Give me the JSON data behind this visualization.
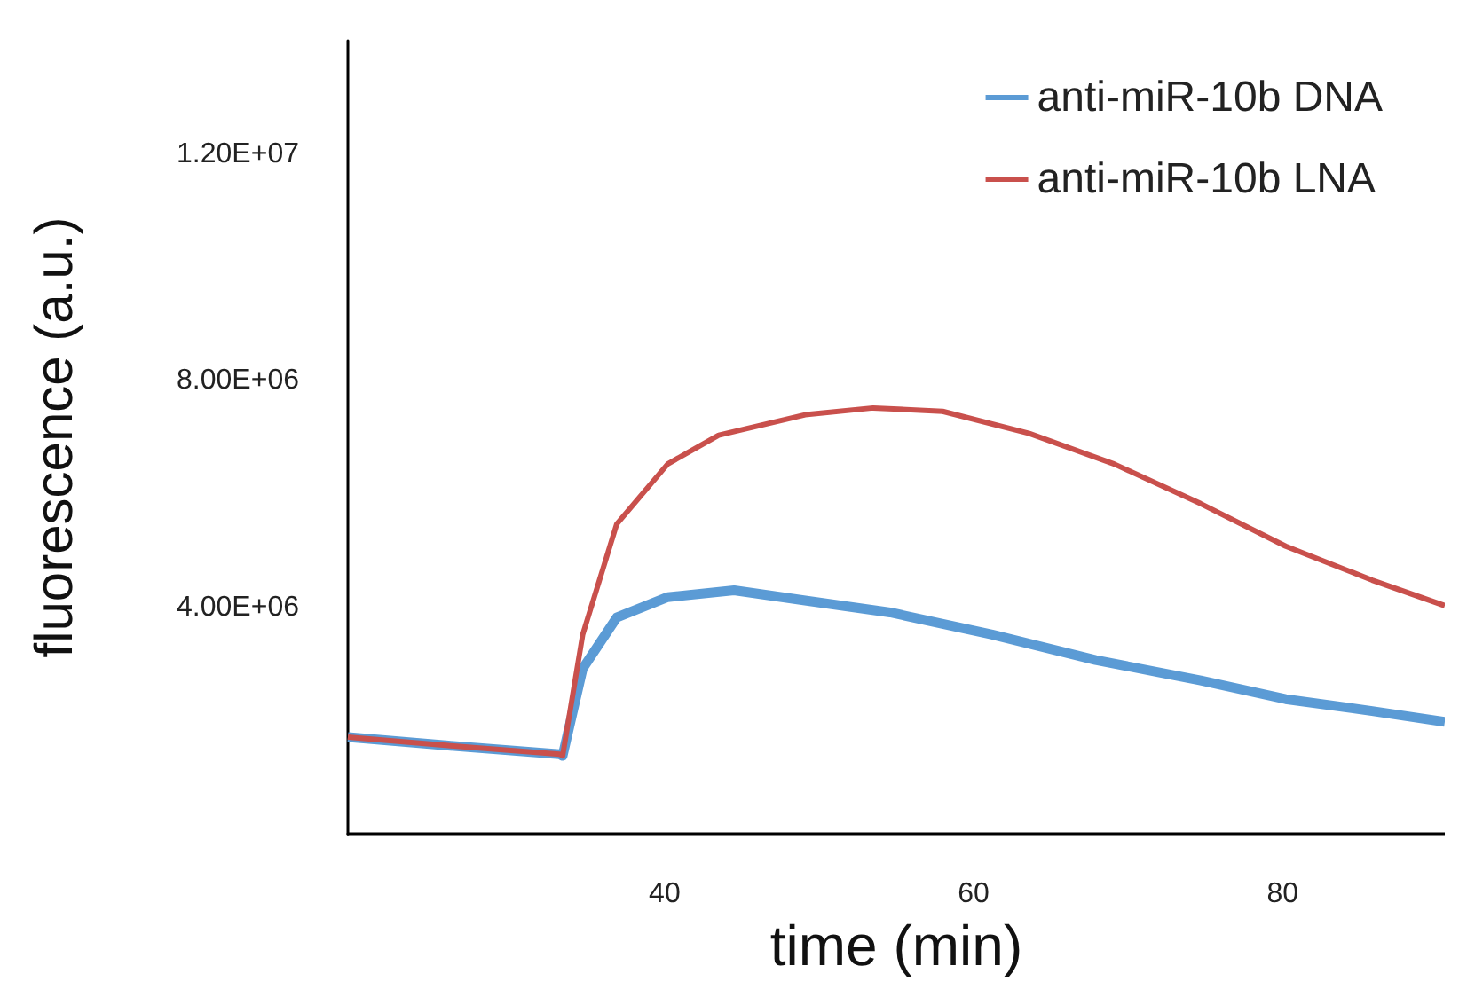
{
  "chart_data": {
    "type": "line",
    "xlabel": "time (min)",
    "ylabel": "fluorescence (a.u.)",
    "xlim": [
      19.5,
      90.5
    ],
    "xticks": [
      40,
      60,
      80
    ],
    "ylim": [
      0,
      14000000
    ],
    "yticks": [
      {
        "value": 4000000,
        "label": "4.00E+06"
      },
      {
        "value": 8000000,
        "label": "8.00E+06"
      },
      {
        "value": 12000000,
        "label": "1.20E+07"
      }
    ],
    "grid": false,
    "legend": "top right",
    "marker": "none",
    "line_style": "solid",
    "series": [
      {
        "name": "anti-miR-10b DNA",
        "color": "#5b9bd5",
        "x": [
          19.5,
          26,
          33.2,
          33.4,
          34.7,
          36.9,
          40.2,
          44.5,
          49.1,
          54.6,
          61.2,
          67.9,
          74.7,
          80.2,
          85.8,
          90.5
        ],
        "values": [
          1710000,
          1560000,
          1410000,
          1380000,
          2920000,
          3820000,
          4180000,
          4300000,
          4120000,
          3910000,
          3520000,
          3070000,
          2710000,
          2380000,
          2170000,
          1980000
        ]
      },
      {
        "name": "anti-miR-10b LNA",
        "color": "#c9504c",
        "x": [
          19.5,
          26,
          33.2,
          33.4,
          34.7,
          36.9,
          40.2,
          43.5,
          49.1,
          53.5,
          58,
          63.6,
          69.1,
          74.7,
          80.2,
          85.8,
          90.5
        ],
        "values": [
          1710000,
          1560000,
          1410000,
          1380000,
          3520000,
          5470000,
          6530000,
          7040000,
          7400000,
          7520000,
          7460000,
          7070000,
          6530000,
          5830000,
          5080000,
          4480000,
          4030000
        ]
      }
    ]
  }
}
